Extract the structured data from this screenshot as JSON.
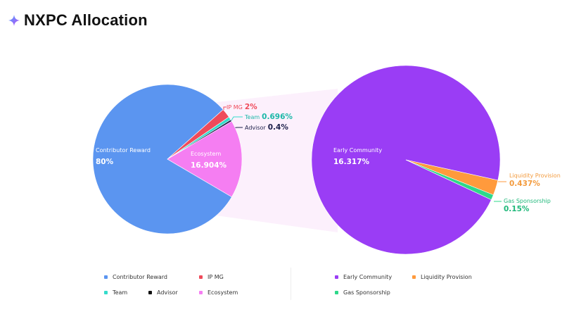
{
  "header": {
    "title": "NXPC Allocation",
    "icon": "sparkle-icon"
  },
  "chart_data": [
    {
      "type": "pie",
      "slices": [
        {
          "label": "Contributor Reward",
          "value": 80,
          "display": "80%",
          "color": "#5b95f0"
        },
        {
          "label": "IP MG",
          "value": 2,
          "display": "2%",
          "color": "#ef4a5a"
        },
        {
          "label": "Team",
          "value": 0.696,
          "display": "0.696%",
          "color": "#34dccb"
        },
        {
          "label": "Advisor",
          "value": 0.4,
          "display": "0.4%",
          "color": "#1c1f4a"
        },
        {
          "label": "Ecosystem",
          "value": 16.904,
          "display": "16.904%",
          "color": "#f57ef2"
        }
      ]
    },
    {
      "type": "pie",
      "breakdown_of": "Ecosystem",
      "slices": [
        {
          "label": "Early Community",
          "value": 16.317,
          "display": "16.317%",
          "color": "#9a3df5"
        },
        {
          "label": "Liquidity Provision",
          "value": 0.437,
          "display": "0.437%",
          "color": "#ff9a3c"
        },
        {
          "label": "Gas Sponsorship",
          "value": 0.15,
          "display": "0.15%",
          "color": "#2ed88a"
        }
      ]
    }
  ],
  "legend": {
    "left": [
      "Contributor Reward",
      "IP MG",
      "Team",
      "Advisor",
      "Ecosystem"
    ],
    "right": [
      "Early Community",
      "Liquidity Provision",
      "Gas Sponsorship"
    ]
  }
}
